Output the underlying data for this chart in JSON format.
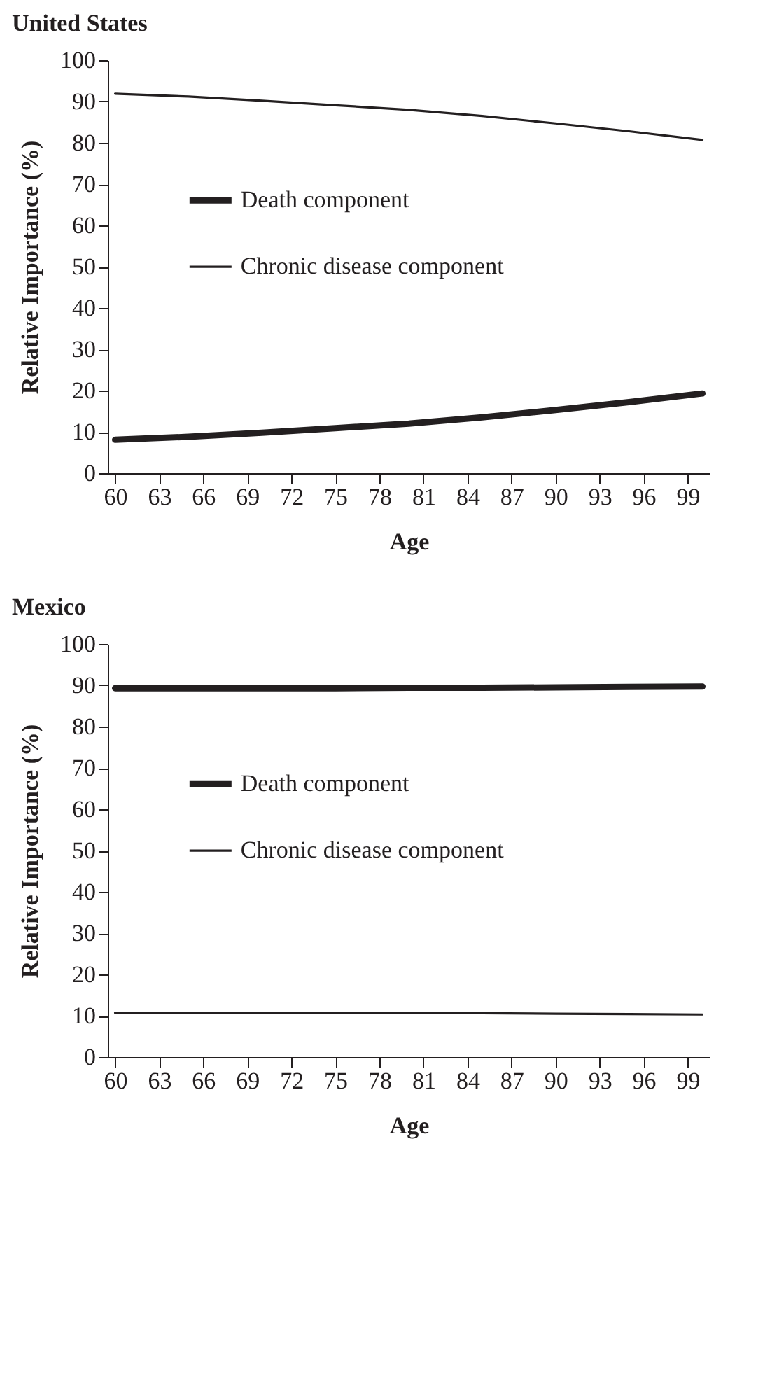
{
  "chart_data": [
    {
      "type": "line",
      "title": "United States",
      "xlabel": "Age",
      "ylabel": "Relative Importance (%)",
      "x": [
        60,
        65,
        70,
        75,
        80,
        85,
        90,
        95,
        100
      ],
      "series": [
        {
          "name": "Death component",
          "color": "#231f20",
          "values": [
            8.1,
            8.8,
            9.8,
            10.9,
            12.0,
            13.5,
            15.3,
            17.2,
            19.3
          ]
        },
        {
          "name": "Chronic disease component",
          "color": "#231f20",
          "values": [
            91.9,
            91.2,
            90.2,
            89.1,
            88.0,
            86.5,
            84.7,
            82.8,
            80.7
          ]
        }
      ],
      "xlim": [
        59.5,
        100.5
      ],
      "xticks": [
        60,
        63,
        66,
        69,
        72,
        75,
        78,
        81,
        84,
        87,
        90,
        93,
        96,
        99
      ],
      "ylim": [
        0,
        100
      ],
      "yticks": [
        0,
        10,
        20,
        30,
        40,
        50,
        60,
        70,
        80,
        90,
        100
      ],
      "legend": "left"
    },
    {
      "type": "line",
      "title": "Mexico",
      "xlabel": "Age",
      "ylabel": "Relative Importance (%)",
      "x": [
        60,
        65,
        70,
        75,
        80,
        85,
        90,
        95,
        100
      ],
      "series": [
        {
          "name": "Death component",
          "color": "#231f20",
          "values": [
            89.3,
            89.3,
            89.3,
            89.3,
            89.4,
            89.4,
            89.5,
            89.6,
            89.7
          ]
        },
        {
          "name": "Chronic disease component",
          "color": "#231f20",
          "values": [
            10.7,
            10.7,
            10.7,
            10.7,
            10.6,
            10.6,
            10.5,
            10.4,
            10.3
          ]
        }
      ],
      "xlim": [
        59.5,
        100.5
      ],
      "xticks": [
        60,
        63,
        66,
        69,
        72,
        75,
        78,
        81,
        84,
        87,
        90,
        93,
        96,
        99
      ],
      "ylim": [
        0,
        100
      ],
      "yticks": [
        0,
        10,
        20,
        30,
        40,
        50,
        60,
        70,
        80,
        90,
        100
      ],
      "legend": "left"
    }
  ]
}
